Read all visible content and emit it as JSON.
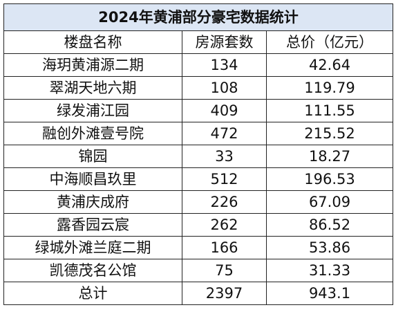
{
  "table": {
    "title": "2024年黄浦部分豪宅数据统计",
    "headers": [
      "楼盘名称",
      "房源套数",
      "总价（亿元）"
    ],
    "rows": [
      [
        "海玥黄浦源二期",
        "134",
        "42.64"
      ],
      [
        "翠湖天地六期",
        "108",
        "119.79"
      ],
      [
        "绿发浦江园",
        "409",
        "111.55"
      ],
      [
        "融创外滩壹号院",
        "472",
        "215.52"
      ],
      [
        "锦园",
        "33",
        "18.27"
      ],
      [
        "中海顺昌玖里",
        "512",
        "196.53"
      ],
      [
        "黄浦庆成府",
        "226",
        "67.09"
      ],
      [
        "露香园云宸",
        "262",
        "86.52"
      ],
      [
        "绿城外滩兰庭二期",
        "166",
        "53.86"
      ],
      [
        "凯德茂名公馆",
        "75",
        "31.33"
      ]
    ],
    "total": [
      "总计",
      "2397",
      "943.1"
    ],
    "title_bg_color": "#dce6f4"
  }
}
